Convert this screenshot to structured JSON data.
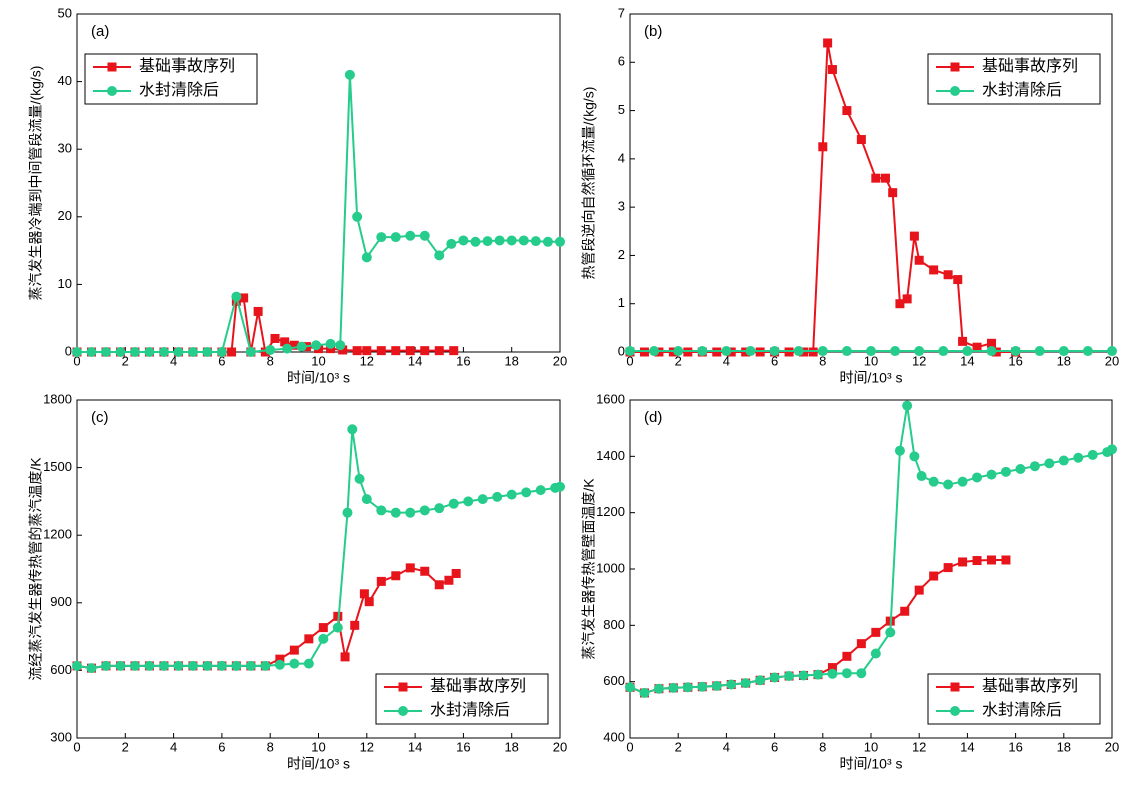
{
  "chart_data": [
    {
      "type": "line",
      "label": "(a)",
      "xlabel": "时间/10³ s",
      "ylabel": "蒸汽发生器冷端到中间管段流量/(kg/s)",
      "xlim": [
        0,
        20
      ],
      "xticks": [
        0,
        2,
        4,
        6,
        8,
        10,
        12,
        14,
        16,
        18,
        20
      ],
      "ylim": [
        0,
        50
      ],
      "yticks": [
        0,
        10,
        20,
        30,
        40,
        50
      ],
      "legend": "upper left",
      "series": [
        {
          "name": "基础事故序列",
          "color": "#e8141c",
          "marker": "square",
          "x": [
            0,
            0.6,
            1.2,
            1.8,
            2.4,
            3.0,
            3.6,
            4.2,
            4.8,
            5.4,
            6.0,
            6.4,
            6.6,
            6.9,
            7.2,
            7.5,
            7.8,
            8.2,
            8.6,
            9.0,
            9.5,
            10.0,
            10.5,
            11.0,
            11.6,
            12.0,
            12.6,
            13.2,
            13.8,
            14.4,
            15.0,
            15.6
          ],
          "values": [
            0,
            0,
            0,
            0,
            0,
            0,
            0,
            0,
            0,
            0,
            0,
            0,
            7.5,
            8,
            0,
            6,
            0,
            2,
            1.5,
            1,
            0.8,
            0.5,
            0.5,
            0.3,
            0.2,
            0.2,
            0.2,
            0.2,
            0.2,
            0.2,
            0.2,
            0.2
          ]
        },
        {
          "name": "水封清除后",
          "color": "#25cc8c",
          "marker": "circle",
          "x": [
            0,
            0.6,
            1.2,
            1.8,
            2.4,
            3.0,
            3.6,
            4.2,
            4.8,
            5.4,
            6.0,
            6.6,
            7.2,
            8.0,
            8.7,
            9.3,
            9.9,
            10.5,
            10.9,
            11.3,
            11.6,
            12.0,
            12.6,
            13.2,
            13.8,
            14.4,
            15.0,
            15.5,
            16.0,
            16.5,
            17.0,
            17.5,
            18.0,
            18.5,
            19.0,
            19.5,
            20.0
          ],
          "values": [
            0,
            0,
            0,
            0,
            0,
            0,
            0,
            0,
            0,
            0,
            0,
            8.2,
            0,
            0.3,
            0.5,
            0.8,
            1,
            1.2,
            1,
            41,
            20,
            14,
            17,
            17,
            17.2,
            17.2,
            14.3,
            16,
            16.5,
            16.3,
            16.4,
            16.5,
            16.5,
            16.5,
            16.4,
            16.3,
            16.3
          ]
        }
      ]
    },
    {
      "type": "line",
      "label": "(b)",
      "xlabel": "时间/10³ s",
      "ylabel": "热管段逆向自然循环流量/(kg/s)",
      "xlim": [
        0,
        20
      ],
      "xticks": [
        0,
        2,
        4,
        6,
        8,
        10,
        12,
        14,
        16,
        18,
        20
      ],
      "ylim": [
        0,
        7
      ],
      "yticks": [
        0,
        1,
        2,
        3,
        4,
        5,
        6,
        7
      ],
      "legend": "upper right",
      "series": [
        {
          "name": "基础事故序列",
          "color": "#e8141c",
          "marker": "square",
          "x": [
            0,
            0.6,
            1.2,
            1.8,
            2.4,
            3.0,
            3.6,
            4.2,
            4.8,
            5.4,
            6.0,
            6.6,
            7.2,
            7.6,
            8.0,
            8.2,
            8.4,
            9.0,
            9.6,
            10.2,
            10.6,
            10.9,
            11.2,
            11.5,
            11.8,
            12.0,
            12.6,
            13.2,
            13.6,
            13.8,
            14.4,
            15.0,
            15.2,
            16.0
          ],
          "values": [
            0,
            0,
            0,
            0,
            0,
            0,
            0,
            0,
            0,
            0,
            0,
            0,
            0,
            0,
            4.25,
            6.4,
            5.85,
            5.0,
            4.4,
            3.6,
            3.6,
            3.3,
            1.0,
            1.1,
            2.4,
            1.9,
            1.7,
            1.6,
            1.5,
            0.22,
            0.1,
            0.18,
            0,
            0
          ]
        },
        {
          "name": "水封清除后",
          "color": "#25cc8c",
          "marker": "circle",
          "x": [
            0,
            1,
            2,
            3,
            4,
            5,
            6,
            7,
            8,
            9,
            10,
            11,
            12,
            13,
            14,
            15,
            16,
            17,
            18,
            19,
            20
          ],
          "values": [
            0.02,
            0.02,
            0.02,
            0.02,
            0.02,
            0.02,
            0.02,
            0.02,
            0.02,
            0.02,
            0.02,
            0.02,
            0.02,
            0.02,
            0.02,
            0.02,
            0.02,
            0.02,
            0.02,
            0.02,
            0.02
          ]
        }
      ]
    },
    {
      "type": "line",
      "label": "(c)",
      "xlabel": "时间/10³ s",
      "ylabel": "流经蒸汽发生器传热管的蒸汽温度/K",
      "xlim": [
        0,
        20
      ],
      "xticks": [
        0,
        2,
        4,
        6,
        8,
        10,
        12,
        14,
        16,
        18,
        20
      ],
      "ylim": [
        300,
        1800
      ],
      "yticks": [
        300,
        600,
        900,
        1200,
        1500,
        1800
      ],
      "legend": "lower right",
      "series": [
        {
          "name": "基础事故序列",
          "color": "#e8141c",
          "marker": "square",
          "x": [
            0,
            0.6,
            1.2,
            1.8,
            2.4,
            3.0,
            3.6,
            4.2,
            4.8,
            5.4,
            6.0,
            6.6,
            7.2,
            7.8,
            8.4,
            9.0,
            9.6,
            10.2,
            10.8,
            11.1,
            11.5,
            11.9,
            12.1,
            12.6,
            13.2,
            13.8,
            14.4,
            15.0,
            15.4,
            15.7
          ],
          "values": [
            620,
            610,
            620,
            620,
            620,
            620,
            620,
            620,
            620,
            620,
            620,
            620,
            620,
            620,
            650,
            690,
            740,
            790,
            840,
            660,
            800,
            940,
            905,
            995,
            1020,
            1055,
            1040,
            980,
            1000,
            1030
          ]
        },
        {
          "name": "水封清除后",
          "color": "#25cc8c",
          "marker": "circle",
          "x": [
            0,
            0.6,
            1.2,
            1.8,
            2.4,
            3.0,
            3.6,
            4.2,
            4.8,
            5.4,
            6.0,
            6.6,
            7.2,
            7.8,
            8.4,
            9.0,
            9.6,
            10.2,
            10.8,
            11.2,
            11.4,
            11.7,
            12.0,
            12.6,
            13.2,
            13.8,
            14.4,
            15.0,
            15.6,
            16.2,
            16.8,
            17.4,
            18.0,
            18.6,
            19.2,
            19.8,
            20.0
          ],
          "values": [
            620,
            610,
            620,
            620,
            620,
            620,
            620,
            620,
            620,
            620,
            620,
            620,
            620,
            620,
            625,
            630,
            630,
            740,
            790,
            1300,
            1670,
            1450,
            1360,
            1310,
            1300,
            1300,
            1310,
            1320,
            1340,
            1350,
            1360,
            1370,
            1380,
            1390,
            1400,
            1410,
            1415
          ]
        }
      ]
    },
    {
      "type": "line",
      "label": "(d)",
      "xlabel": "时间/10³ s",
      "ylabel": "蒸汽发生器传热管壁面温度/K",
      "xlim": [
        0,
        20
      ],
      "xticks": [
        0,
        2,
        4,
        6,
        8,
        10,
        12,
        14,
        16,
        18,
        20
      ],
      "ylim": [
        400,
        1600
      ],
      "yticks": [
        400,
        600,
        800,
        1000,
        1200,
        1400,
        1600
      ],
      "legend": "lower right",
      "series": [
        {
          "name": "基础事故序列",
          "color": "#e8141c",
          "marker": "square",
          "x": [
            0,
            0.6,
            1.2,
            1.8,
            2.4,
            3.0,
            3.6,
            4.2,
            4.8,
            5.4,
            6.0,
            6.6,
            7.2,
            7.8,
            8.4,
            9.0,
            9.6,
            10.2,
            10.8,
            11.4,
            12.0,
            12.6,
            13.2,
            13.8,
            14.4,
            15.0,
            15.6
          ],
          "values": [
            580,
            560,
            575,
            578,
            580,
            582,
            585,
            590,
            595,
            605,
            615,
            620,
            622,
            625,
            650,
            690,
            735,
            775,
            815,
            850,
            925,
            975,
            1005,
            1025,
            1030,
            1032,
            1032
          ]
        },
        {
          "name": "水封清除后",
          "color": "#25cc8c",
          "marker": "circle",
          "x": [
            0,
            0.6,
            1.2,
            1.8,
            2.4,
            3.0,
            3.6,
            4.2,
            4.8,
            5.4,
            6.0,
            6.6,
            7.2,
            7.8,
            8.4,
            9.0,
            9.6,
            10.2,
            10.8,
            11.2,
            11.5,
            11.8,
            12.1,
            12.6,
            13.2,
            13.8,
            14.4,
            15.0,
            15.6,
            16.2,
            16.8,
            17.4,
            18.0,
            18.6,
            19.2,
            19.8,
            20.0
          ],
          "values": [
            580,
            560,
            575,
            578,
            580,
            582,
            585,
            590,
            595,
            605,
            615,
            620,
            622,
            625,
            628,
            630,
            630,
            700,
            775,
            1420,
            1580,
            1400,
            1330,
            1310,
            1300,
            1310,
            1325,
            1335,
            1345,
            1355,
            1365,
            1375,
            1385,
            1395,
            1405,
            1415,
            1425
          ]
        }
      ]
    }
  ]
}
